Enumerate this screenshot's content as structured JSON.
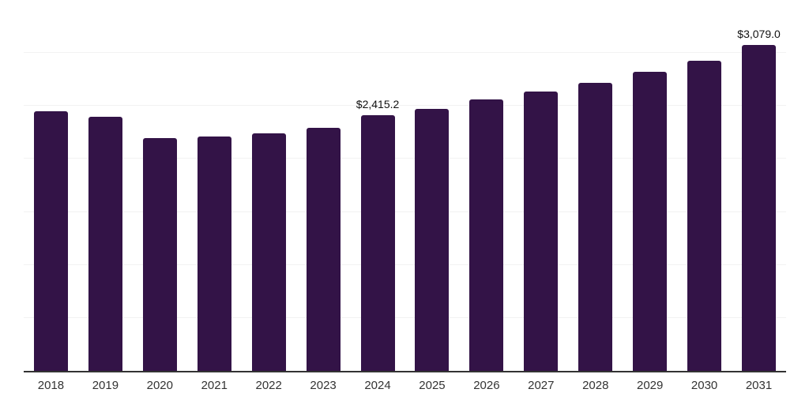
{
  "chart_data": {
    "type": "bar",
    "title": "",
    "xlabel": "",
    "ylabel": "",
    "categories": [
      "2018",
      "2019",
      "2020",
      "2021",
      "2022",
      "2023",
      "2024",
      "2025",
      "2026",
      "2027",
      "2028",
      "2029",
      "2030",
      "2031"
    ],
    "values": [
      2450,
      2400,
      2200,
      2215,
      2245,
      2295,
      2415.2,
      2475,
      2565,
      2640,
      2720,
      2825,
      2930,
      3079
    ],
    "data_labels": [
      "",
      "",
      "",
      "",
      "",
      "",
      "$2,415.2",
      "",
      "",
      "",
      "",
      "",
      "",
      "$3,079.0"
    ],
    "ylim": [
      0,
      3500
    ],
    "gridline_step": 500,
    "grid": true,
    "legend": "none",
    "colors": {
      "bar": "#331347",
      "gridline": "#f2f2f2",
      "axis_line": "#333333",
      "tick_label": "#333333",
      "data_label": "#111111",
      "background": "#ffffff"
    }
  }
}
